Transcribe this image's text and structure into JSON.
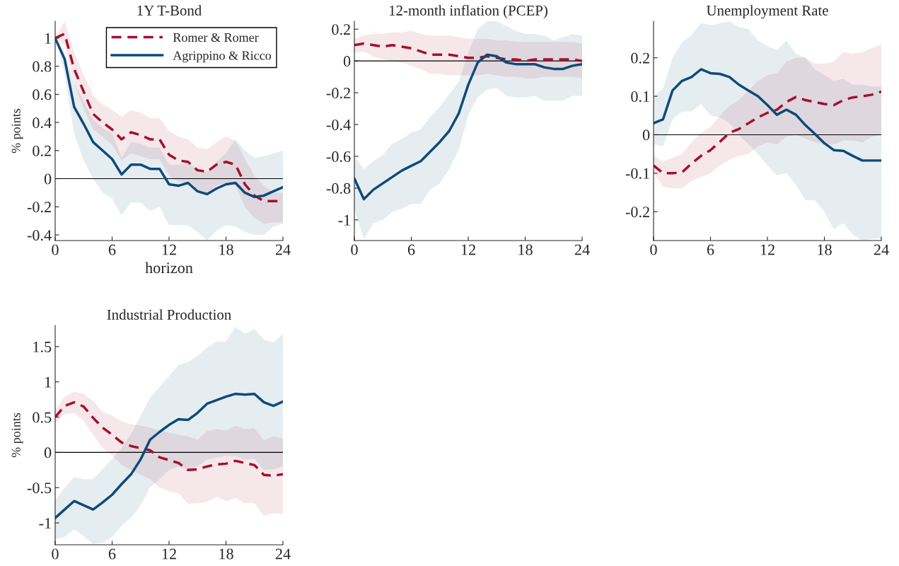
{
  "chart_data": [
    {
      "type": "line",
      "title": "1Y T-Bond",
      "xlabel": "horizon",
      "ylabel": "% points",
      "x": [
        0,
        1,
        2,
        3,
        4,
        5,
        6,
        7,
        8,
        9,
        10,
        11,
        12,
        13,
        14,
        15,
        16,
        17,
        18,
        19,
        20,
        21,
        22,
        23,
        24
      ],
      "xlim": [
        0,
        24
      ],
      "xticks": [
        0,
        6,
        12,
        18,
        24
      ],
      "ylim": [
        -0.44,
        1.12
      ],
      "yticks": [
        -0.4,
        -0.2,
        0,
        0.2,
        0.4,
        0.6,
        0.8,
        1
      ],
      "grid": false,
      "legend": "top right",
      "ref_lines": [
        {
          "axis": "y",
          "value": 0,
          "color": "#000000"
        }
      ],
      "series": [
        {
          "name": "Romer & Romer",
          "color": "#a50f2d",
          "line_style": "dashed",
          "values": [
            1.0,
            1.03,
            0.78,
            0.62,
            0.46,
            0.4,
            0.35,
            0.28,
            0.33,
            0.31,
            0.28,
            0.28,
            0.17,
            0.13,
            0.12,
            0.06,
            0.05,
            0.1,
            0.12,
            0.1,
            -0.04,
            -0.12,
            -0.16,
            -0.16,
            -0.16
          ],
          "upper": [
            1.0,
            1.12,
            0.9,
            0.74,
            0.59,
            0.53,
            0.49,
            0.44,
            0.49,
            0.47,
            0.43,
            0.43,
            0.34,
            0.3,
            0.28,
            0.22,
            0.21,
            0.26,
            0.3,
            0.27,
            0.14,
            0.02,
            -0.05,
            -0.1,
            -0.1
          ],
          "lower": [
            1.0,
            0.95,
            0.68,
            0.5,
            0.35,
            0.3,
            0.24,
            0.13,
            0.18,
            0.16,
            0.14,
            0.14,
            0.02,
            -0.02,
            -0.03,
            -0.09,
            -0.1,
            -0.05,
            -0.03,
            -0.05,
            -0.2,
            -0.28,
            -0.32,
            -0.31,
            -0.31
          ]
        },
        {
          "name": "Agrippino & Ricco",
          "color": "#0d4a7a",
          "line_style": "solid",
          "values": [
            1.0,
            0.85,
            0.51,
            0.39,
            0.26,
            0.2,
            0.14,
            0.03,
            0.1,
            0.1,
            0.07,
            0.07,
            -0.04,
            -0.05,
            -0.03,
            -0.09,
            -0.11,
            -0.07,
            -0.04,
            -0.03,
            -0.1,
            -0.13,
            -0.12,
            -0.09,
            -0.06
          ],
          "upper": [
            1.0,
            0.9,
            0.68,
            0.55,
            0.42,
            0.36,
            0.32,
            0.15,
            0.26,
            0.25,
            0.22,
            0.22,
            0.1,
            0.1,
            0.12,
            0.06,
            0.05,
            0.12,
            0.18,
            0.28,
            0.2,
            0.15,
            0.16,
            0.18,
            0.2
          ],
          "lower": [
            1.0,
            0.75,
            0.32,
            0.13,
            0.0,
            -0.1,
            -0.14,
            -0.26,
            -0.17,
            -0.17,
            -0.23,
            -0.2,
            -0.33,
            -0.33,
            -0.33,
            -0.38,
            -0.44,
            -0.37,
            -0.33,
            -0.34,
            -0.38,
            -0.4,
            -0.4,
            -0.34,
            -0.32
          ]
        }
      ]
    },
    {
      "type": "line",
      "title": "12-month inflation (PCEP)",
      "x": [
        0,
        1,
        2,
        3,
        4,
        5,
        6,
        7,
        8,
        9,
        10,
        11,
        12,
        13,
        14,
        15,
        16,
        17,
        18,
        19,
        20,
        21,
        22,
        23,
        24
      ],
      "xlim": [
        0,
        24
      ],
      "xticks": [
        0,
        6,
        12,
        18,
        24
      ],
      "ylim": [
        -1.13,
        0.25
      ],
      "yticks": [
        -1,
        -0.8,
        -0.6,
        -0.4,
        -0.2,
        0,
        0.2
      ],
      "grid": false,
      "legend": false,
      "ref_lines": [
        {
          "axis": "y",
          "value": 0,
          "color": "#000000"
        }
      ],
      "series": [
        {
          "color": "#a50f2d",
          "line_style": "dashed",
          "values": [
            0.1,
            0.11,
            0.1,
            0.09,
            0.1,
            0.09,
            0.08,
            0.06,
            0.04,
            0.04,
            0.04,
            0.03,
            0.02,
            0.02,
            0.03,
            0.02,
            0.01,
            0.01,
            0.0,
            0.01,
            0.01,
            0.01,
            0.01,
            0.01,
            0.0
          ],
          "upper": [
            0.14,
            0.16,
            0.17,
            0.17,
            0.18,
            0.18,
            0.19,
            0.17,
            0.16,
            0.16,
            0.16,
            0.15,
            0.14,
            0.14,
            0.14,
            0.13,
            0.13,
            0.12,
            0.12,
            0.12,
            0.12,
            0.12,
            0.12,
            0.12,
            0.11
          ],
          "lower": [
            0.05,
            0.06,
            0.03,
            0.01,
            0.0,
            -0.01,
            -0.03,
            -0.05,
            -0.08,
            -0.08,
            -0.09,
            -0.09,
            -0.09,
            -0.09,
            -0.08,
            -0.09,
            -0.1,
            -0.1,
            -0.11,
            -0.11,
            -0.1,
            -0.1,
            -0.1,
            -0.1,
            -0.11
          ]
        },
        {
          "color": "#0d4a7a",
          "line_style": "solid",
          "values": [
            -0.74,
            -0.87,
            -0.81,
            -0.77,
            -0.73,
            -0.69,
            -0.66,
            -0.63,
            -0.57,
            -0.51,
            -0.44,
            -0.33,
            -0.15,
            -0.01,
            0.04,
            0.03,
            -0.01,
            -0.02,
            -0.02,
            -0.02,
            -0.04,
            -0.05,
            -0.05,
            -0.03,
            -0.02
          ],
          "upper": [
            -0.6,
            -0.68,
            -0.63,
            -0.59,
            -0.52,
            -0.49,
            -0.45,
            -0.43,
            -0.35,
            -0.29,
            -0.21,
            -0.13,
            0.05,
            0.2,
            0.25,
            0.25,
            0.22,
            0.19,
            0.17,
            0.17,
            0.16,
            0.13,
            0.15,
            0.17,
            0.16
          ],
          "lower": [
            -0.93,
            -1.12,
            -1.02,
            -1.0,
            -0.95,
            -0.93,
            -0.9,
            -0.9,
            -0.81,
            -0.77,
            -0.68,
            -0.56,
            -0.34,
            -0.23,
            -0.18,
            -0.17,
            -0.22,
            -0.23,
            -0.23,
            -0.22,
            -0.25,
            -0.25,
            -0.25,
            -0.22,
            -0.22
          ]
        }
      ]
    },
    {
      "type": "line",
      "title": "Unemployment Rate",
      "x": [
        0,
        1,
        2,
        3,
        4,
        5,
        6,
        7,
        8,
        9,
        10,
        11,
        12,
        13,
        14,
        15,
        16,
        17,
        18,
        19,
        20,
        21,
        22,
        23,
        24
      ],
      "xlim": [
        0,
        24
      ],
      "xticks": [
        0,
        6,
        12,
        18,
        24
      ],
      "ylim": [
        -0.275,
        0.295
      ],
      "yticks": [
        -0.2,
        -0.1,
        0,
        0.1,
        0.2
      ],
      "grid": false,
      "legend": false,
      "ref_lines": [
        {
          "axis": "y",
          "value": 0,
          "color": "#000000"
        }
      ],
      "series": [
        {
          "color": "#a50f2d",
          "line_style": "dashed",
          "values": [
            -0.08,
            -0.1,
            -0.1,
            -0.098,
            -0.075,
            -0.055,
            -0.04,
            -0.018,
            0.005,
            0.015,
            0.03,
            0.045,
            0.057,
            0.065,
            0.085,
            0.098,
            0.09,
            0.085,
            0.08,
            0.077,
            0.09,
            0.097,
            0.1,
            0.104,
            0.112
          ],
          "upper": [
            -0.055,
            -0.07,
            -0.06,
            -0.05,
            -0.02,
            0.005,
            0.02,
            0.05,
            0.075,
            0.09,
            0.115,
            0.14,
            0.155,
            0.16,
            0.19,
            0.2,
            0.2,
            0.185,
            0.185,
            0.19,
            0.215,
            0.21,
            0.215,
            0.225,
            0.235
          ],
          "lower": [
            -0.1,
            -0.135,
            -0.14,
            -0.14,
            -0.12,
            -0.11,
            -0.1,
            -0.08,
            -0.065,
            -0.055,
            -0.05,
            -0.03,
            -0.02,
            -0.025,
            -0.005,
            0.0,
            -0.01,
            -0.02,
            -0.025,
            -0.025,
            -0.015,
            -0.015,
            -0.02,
            -0.005,
            0.0
          ]
        },
        {
          "color": "#0d4a7a",
          "line_style": "solid",
          "values": [
            0.03,
            0.04,
            0.115,
            0.14,
            0.15,
            0.17,
            0.16,
            0.158,
            0.15,
            0.13,
            0.115,
            0.1,
            0.077,
            0.052,
            0.065,
            0.052,
            0.025,
            0.002,
            -0.022,
            -0.04,
            -0.042,
            -0.055,
            -0.067,
            -0.067,
            -0.067
          ],
          "upper": [
            0.1,
            0.12,
            0.2,
            0.24,
            0.26,
            0.29,
            0.285,
            0.29,
            0.295,
            0.28,
            0.275,
            0.245,
            0.23,
            0.22,
            0.245,
            0.21,
            0.2,
            0.17,
            0.155,
            0.14,
            0.145,
            0.13,
            0.13,
            0.125,
            0.125
          ],
          "lower": [
            -0.025,
            -0.03,
            0.04,
            0.06,
            0.06,
            0.08,
            0.05,
            0.045,
            0.03,
            0.0,
            -0.025,
            -0.05,
            -0.08,
            -0.105,
            -0.1,
            -0.13,
            -0.17,
            -0.17,
            -0.2,
            -0.245,
            -0.23,
            -0.26,
            -0.275,
            -0.27,
            -0.27
          ]
        }
      ]
    },
    {
      "type": "line",
      "title": "Industrial Production",
      "ylabel": "% points",
      "x": [
        0,
        1,
        2,
        3,
        4,
        5,
        6,
        7,
        8,
        9,
        10,
        11,
        12,
        13,
        14,
        15,
        16,
        17,
        18,
        19,
        20,
        21,
        22,
        23,
        24
      ],
      "xlim": [
        0,
        24
      ],
      "xticks": [
        0,
        6,
        12,
        18,
        24
      ],
      "ylim": [
        -1.31,
        1.8
      ],
      "yticks": [
        -1,
        -0.5,
        0,
        0.5,
        1,
        1.5
      ],
      "grid": false,
      "legend": false,
      "ref_lines": [
        {
          "axis": "y",
          "value": 0,
          "color": "#000000"
        }
      ],
      "series": [
        {
          "color": "#a50f2d",
          "line_style": "dashed",
          "values": [
            0.5,
            0.66,
            0.71,
            0.65,
            0.49,
            0.35,
            0.25,
            0.14,
            0.09,
            0.06,
            0.03,
            -0.07,
            -0.11,
            -0.15,
            -0.25,
            -0.24,
            -0.2,
            -0.17,
            -0.16,
            -0.12,
            -0.15,
            -0.18,
            -0.32,
            -0.33,
            -0.31
          ],
          "upper": [
            0.6,
            0.79,
            0.86,
            0.83,
            0.73,
            0.57,
            0.52,
            0.44,
            0.4,
            0.38,
            0.35,
            0.31,
            0.28,
            0.25,
            0.23,
            0.18,
            0.3,
            0.33,
            0.31,
            0.38,
            0.33,
            0.34,
            0.17,
            0.23,
            0.2
          ],
          "lower": [
            0.42,
            0.54,
            0.56,
            0.44,
            0.25,
            0.06,
            -0.04,
            -0.18,
            -0.25,
            -0.32,
            -0.38,
            -0.5,
            -0.55,
            -0.58,
            -0.73,
            -0.72,
            -0.7,
            -0.63,
            -0.69,
            -0.65,
            -0.72,
            -0.72,
            -0.9,
            -0.86,
            -0.87
          ]
        },
        {
          "color": "#0d4a7a",
          "line_style": "solid",
          "values": [
            -0.93,
            -0.81,
            -0.69,
            -0.75,
            -0.81,
            -0.71,
            -0.6,
            -0.45,
            -0.31,
            -0.1,
            0.18,
            0.29,
            0.39,
            0.47,
            0.46,
            0.56,
            0.69,
            0.74,
            0.79,
            0.83,
            0.82,
            0.83,
            0.71,
            0.66,
            0.72
          ],
          "upper": [
            -0.68,
            -0.5,
            -0.35,
            -0.38,
            -0.38,
            -0.24,
            -0.09,
            0.06,
            0.26,
            0.52,
            0.78,
            0.93,
            1.08,
            1.24,
            1.28,
            1.37,
            1.49,
            1.57,
            1.57,
            1.78,
            1.68,
            1.75,
            1.6,
            1.56,
            1.68
          ],
          "lower": [
            -1.23,
            -1.2,
            -1.09,
            -1.19,
            -1.3,
            -1.28,
            -1.2,
            -1.04,
            -0.93,
            -0.75,
            -0.5,
            -0.38,
            -0.25,
            -0.2,
            -0.25,
            -0.2,
            -0.1,
            -0.07,
            -0.05,
            -0.05,
            -0.1,
            -0.09,
            -0.25,
            -0.24,
            -0.2
          ]
        }
      ]
    }
  ]
}
